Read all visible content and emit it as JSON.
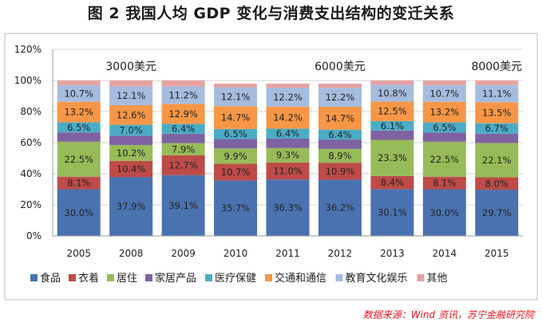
{
  "header": {
    "title": "图 2  我国人均 GDP 变化与消费支出结构的变迁关系"
  },
  "footer": {
    "source": "数据来源：Wind 资讯，苏宁金融研究院"
  },
  "colors": {
    "食品": "#4a72b0",
    "衣着": "#be4b48",
    "居住": "#98bb59",
    "家居产品": "#7e62a1",
    "医疗保健": "#4bacc6",
    "交通和通信": "#f79646",
    "教育文化娱乐": "#a6bcdf",
    "其他": "#e6a3a1"
  },
  "chart_data": {
    "type": "bar",
    "stacked": true,
    "categories": [
      "2005",
      "2008",
      "2009",
      "2010",
      "2011",
      "2012",
      "2013",
      "2014",
      "2015"
    ],
    "series": [
      {
        "name": "食品",
        "values": [
          30.0,
          37.9,
          39.1,
          35.7,
          36.3,
          36.2,
          30.1,
          30.0,
          29.7
        ],
        "labels": [
          "30.0%",
          "37.9%",
          "39.1%",
          "35.7%",
          "36.3%",
          "36.2%",
          "30.1%",
          "30.0%",
          "29.7%"
        ]
      },
      {
        "name": "衣着",
        "values": [
          8.1,
          10.4,
          12.7,
          10.7,
          11.0,
          10.9,
          8.4,
          8.1,
          8.0
        ],
        "labels": [
          "8.1%",
          "10.4%",
          "12.7%",
          "10.7%",
          "11.0%",
          "10.9%",
          "8.4%",
          "8.1%",
          "8.0%"
        ]
      },
      {
        "name": "居住",
        "values": [
          22.5,
          10.2,
          7.9,
          9.9,
          9.3,
          8.9,
          23.3,
          22.5,
          22.1
        ],
        "labels": [
          "22.5%",
          "10.2%",
          "7.9%",
          "9.9%",
          "9.3%",
          "8.9%",
          "23.3%",
          "22.5%",
          "22.1%"
        ]
      },
      {
        "name": "家居产品",
        "values": [
          6.0,
          6.0,
          6.0,
          6.0,
          6.0,
          6.0,
          6.0,
          6.0,
          6.0
        ],
        "labels": null
      },
      {
        "name": "医疗保健",
        "values": [
          6.5,
          7.0,
          6.4,
          6.5,
          6.4,
          6.4,
          6.1,
          6.5,
          6.7
        ],
        "labels": [
          "6.5%",
          "7.0%",
          "6.4%",
          "6.5%",
          "6.4%",
          "6.4%",
          "6.1%",
          "6.5%",
          "6.7%"
        ]
      },
      {
        "name": "交通和通信",
        "values": [
          13.2,
          12.6,
          12.9,
          14.7,
          14.2,
          14.7,
          12.5,
          13.2,
          13.5
        ],
        "labels": [
          "13.2%",
          "12.6%",
          "12.9%",
          "14.7%",
          "14.2%",
          "14.7%",
          "12.5%",
          "13.2%",
          "13.5%"
        ]
      },
      {
        "name": "教育文化娱乐",
        "values": [
          10.7,
          12.1,
          11.2,
          12.1,
          12.2,
          12.2,
          10.8,
          10.7,
          11.1
        ],
        "labels": [
          "10.7%",
          "12.1%",
          "11.2%",
          "12.1%",
          "12.2%",
          "12.2%",
          "10.8%",
          "10.7%",
          "11.1%"
        ]
      },
      {
        "name": "其他",
        "values": [
          3.0,
          3.8,
          3.8,
          2.4,
          2.6,
          2.7,
          2.8,
          3.0,
          2.9
        ],
        "labels": null
      }
    ],
    "yticks": [
      "0%",
      "20%",
      "40%",
      "60%",
      "80%",
      "100%",
      "120%"
    ],
    "ylim": [
      0,
      120
    ],
    "annotations": [
      {
        "text": "3000美元",
        "category": "2008"
      },
      {
        "text": "6000美元",
        "category": "2012"
      },
      {
        "text": "8000美元",
        "category": "2015"
      }
    ],
    "legend": [
      "食品",
      "衣着",
      "居住",
      "家居产品",
      "医疗保健",
      "交通和通信",
      "教育文化娱乐",
      "其他"
    ],
    "legend_position": "bottom"
  }
}
